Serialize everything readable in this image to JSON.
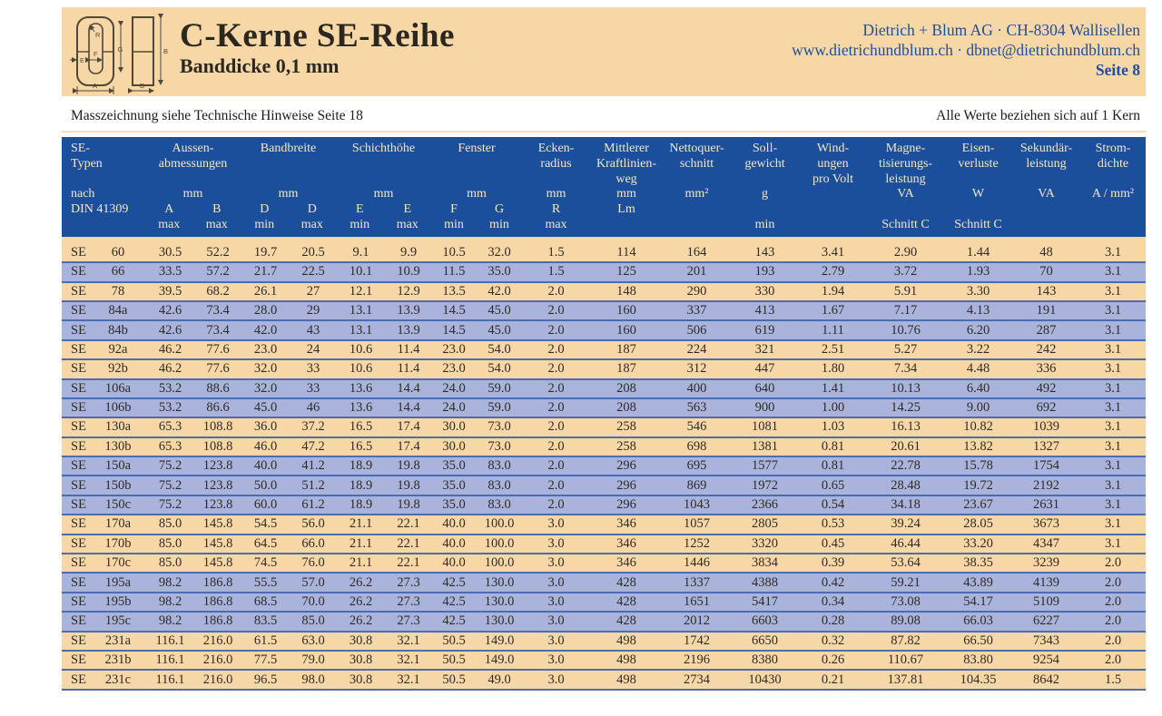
{
  "header": {
    "title": "C-Kerne SE-Reihe",
    "subtitle": "Banddicke 0,1 mm",
    "company_line1": "Dietrich + Blum AG · CH-8304 Wallisellen",
    "company_line2": "www.dietrichundblum.ch · dbnet@dietrichundblum.ch",
    "page_label": "Seite 8",
    "diagram_labels": {
      "r": "R",
      "g": "G",
      "f": "F",
      "e": "E",
      "a": "A",
      "b": "B",
      "d": "D"
    }
  },
  "notes": {
    "left": "Masszeichnung siehe Technische Hinweise Seite 18",
    "right": "Alle Werte beziehen sich auf 1 Kern"
  },
  "colors": {
    "peach": "#F8D7A6",
    "blue_row": "#A9B3DC",
    "header_blue": "#1C4F9B",
    "border_blue": "#4A6CB1",
    "header_text": "#F3E7C8",
    "blue_text": "#1C4F9B"
  },
  "table": {
    "groups": [
      {
        "id": "type",
        "span": 1,
        "align": "left",
        "lines": [
          "SE-",
          "Typen",
          "",
          "nach",
          "DIN 41309",
          ""
        ]
      },
      {
        "id": "aussenabmessungen",
        "span": 2,
        "lines": [
          "Aussen-",
          "abmessungen",
          "",
          "mm",
          [
            "A",
            "B"
          ],
          [
            "max",
            "max"
          ]
        ]
      },
      {
        "id": "bandbreite",
        "span": 2,
        "lines": [
          "Bandbreite",
          "",
          "",
          "mm",
          [
            "D",
            "D"
          ],
          [
            "min",
            "max"
          ]
        ]
      },
      {
        "id": "schichthoehe",
        "span": 2,
        "lines": [
          "Schichthöhe",
          "",
          "",
          "mm",
          [
            "E",
            "E"
          ],
          [
            "min",
            "max"
          ]
        ]
      },
      {
        "id": "fenster",
        "span": 2,
        "lines": [
          "Fenster",
          "",
          "",
          "mm",
          [
            "F",
            "G"
          ],
          [
            "min",
            "min"
          ]
        ]
      },
      {
        "id": "eckenradius",
        "span": 1,
        "lines": [
          "Ecken-",
          "radius",
          "",
          "mm",
          "R",
          "max"
        ]
      },
      {
        "id": "kraftlinienweg",
        "span": 1,
        "lines": [
          "Mittlerer",
          "Kraftlinien-",
          "weg",
          "mm",
          "Lm",
          ""
        ]
      },
      {
        "id": "nettoquerschnitt",
        "span": 1,
        "lines": [
          "Nettoquer-",
          "schnitt",
          "",
          "mm²",
          "",
          ""
        ]
      },
      {
        "id": "sollgewicht",
        "span": 1,
        "lines": [
          "Soll-",
          "gewicht",
          "",
          "g",
          "",
          "min"
        ]
      },
      {
        "id": "windungen",
        "span": 1,
        "lines": [
          "Wind-",
          "ungen",
          "pro Volt",
          "",
          "",
          ""
        ]
      },
      {
        "id": "magnetisierungsleistung",
        "span": 1,
        "lines": [
          "Magne-",
          "tisierungs-",
          "leistung",
          "VA",
          "",
          "Schnitt C"
        ]
      },
      {
        "id": "eisenverluste",
        "span": 1,
        "lines": [
          "Eisen-",
          "verluste",
          "",
          "W",
          "",
          "Schnitt C"
        ]
      },
      {
        "id": "sekundaerleistung",
        "span": 1,
        "lines": [
          "Sekundär-",
          "leistung",
          "",
          "VA",
          "",
          ""
        ]
      },
      {
        "id": "stromdichte",
        "span": 1,
        "lines": [
          "Strom-",
          "dichte",
          "",
          "A / mm²",
          "",
          ""
        ]
      }
    ],
    "rows": [
      {
        "prefix": "SE",
        "code": "60",
        "shade": "peach",
        "values": [
          "30.5",
          "52.2",
          "19.7",
          "20.5",
          "9.1",
          "9.9",
          "10.5",
          "32.0",
          "1.5",
          "114",
          "164",
          "143",
          "3.41",
          "2.90",
          "1.44",
          "48",
          "3.1"
        ]
      },
      {
        "prefix": "SE",
        "code": "66",
        "shade": "blue",
        "values": [
          "33.5",
          "57.2",
          "21.7",
          "22.5",
          "10.1",
          "10.9",
          "11.5",
          "35.0",
          "1.5",
          "125",
          "201",
          "193",
          "2.79",
          "3.72",
          "1.93",
          "70",
          "3.1"
        ]
      },
      {
        "prefix": "SE",
        "code": "78",
        "shade": "peach",
        "values": [
          "39.5",
          "68.2",
          "26.1",
          "27",
          "12.1",
          "12.9",
          "13.5",
          "42.0",
          "2.0",
          "148",
          "290",
          "330",
          "1.94",
          "5.91",
          "3.30",
          "143",
          "3.1"
        ]
      },
      {
        "prefix": "SE",
        "code": "84a",
        "shade": "blue",
        "values": [
          "42.6",
          "73.4",
          "28.0",
          "29",
          "13.1",
          "13.9",
          "14.5",
          "45.0",
          "2.0",
          "160",
          "337",
          "413",
          "1.67",
          "7.17",
          "4.13",
          "191",
          "3.1"
        ]
      },
      {
        "prefix": "SE",
        "code": "84b",
        "shade": "blue",
        "values": [
          "42.6",
          "73.4",
          "42.0",
          "43",
          "13.1",
          "13.9",
          "14.5",
          "45.0",
          "2.0",
          "160",
          "506",
          "619",
          "1.11",
          "10.76",
          "6.20",
          "287",
          "3.1"
        ]
      },
      {
        "prefix": "SE",
        "code": "92a",
        "shade": "peach",
        "values": [
          "46.2",
          "77.6",
          "23.0",
          "24",
          "10.6",
          "11.4",
          "23.0",
          "54.0",
          "2.0",
          "187",
          "224",
          "321",
          "2.51",
          "5.27",
          "3.22",
          "242",
          "3.1"
        ]
      },
      {
        "prefix": "SE",
        "code": "92b",
        "shade": "peach",
        "values": [
          "46.2",
          "77.6",
          "32.0",
          "33",
          "10.6",
          "11.4",
          "23.0",
          "54.0",
          "2.0",
          "187",
          "312",
          "447",
          "1.80",
          "7.34",
          "4.48",
          "336",
          "3.1"
        ]
      },
      {
        "prefix": "SE",
        "code": "106a",
        "shade": "blue",
        "values": [
          "53.2",
          "88.6",
          "32.0",
          "33",
          "13.6",
          "14.4",
          "24.0",
          "59.0",
          "2.0",
          "208",
          "400",
          "640",
          "1.41",
          "10.13",
          "6.40",
          "492",
          "3.1"
        ]
      },
      {
        "prefix": "SE",
        "code": "106b",
        "shade": "blue",
        "values": [
          "53.2",
          "86.6",
          "45.0",
          "46",
          "13.6",
          "14.4",
          "24.0",
          "59.0",
          "2.0",
          "208",
          "563",
          "900",
          "1.00",
          "14.25",
          "9.00",
          "692",
          "3.1"
        ]
      },
      {
        "prefix": "SE",
        "code": "130a",
        "shade": "peach",
        "values": [
          "65.3",
          "108.8",
          "36.0",
          "37.2",
          "16.5",
          "17.4",
          "30.0",
          "73.0",
          "2.0",
          "258",
          "546",
          "1081",
          "1.03",
          "16.13",
          "10.82",
          "1039",
          "3.1"
        ]
      },
      {
        "prefix": "SE",
        "code": "130b",
        "shade": "peach",
        "values": [
          "65.3",
          "108.8",
          "46.0",
          "47.2",
          "16.5",
          "17.4",
          "30.0",
          "73.0",
          "2.0",
          "258",
          "698",
          "1381",
          "0.81",
          "20.61",
          "13.82",
          "1327",
          "3.1"
        ]
      },
      {
        "prefix": "SE",
        "code": "150a",
        "shade": "blue",
        "values": [
          "75.2",
          "123.8",
          "40.0",
          "41.2",
          "18.9",
          "19.8",
          "35.0",
          "83.0",
          "2.0",
          "296",
          "695",
          "1577",
          "0.81",
          "22.78",
          "15.78",
          "1754",
          "3.1"
        ]
      },
      {
        "prefix": "SE",
        "code": "150b",
        "shade": "blue",
        "values": [
          "75.2",
          "123.8",
          "50.0",
          "51.2",
          "18.9",
          "19.8",
          "35.0",
          "83.0",
          "2.0",
          "296",
          "869",
          "1972",
          "0.65",
          "28.48",
          "19.72",
          "2192",
          "3.1"
        ]
      },
      {
        "prefix": "SE",
        "code": "150c",
        "shade": "blue",
        "values": [
          "75.2",
          "123.8",
          "60.0",
          "61.2",
          "18.9",
          "19.8",
          "35.0",
          "83.0",
          "2.0",
          "296",
          "1043",
          "2366",
          "0.54",
          "34.18",
          "23.67",
          "2631",
          "3.1"
        ]
      },
      {
        "prefix": "SE",
        "code": "170a",
        "shade": "peach",
        "values": [
          "85.0",
          "145.8",
          "54.5",
          "56.0",
          "21.1",
          "22.1",
          "40.0",
          "100.0",
          "3.0",
          "346",
          "1057",
          "2805",
          "0.53",
          "39.24",
          "28.05",
          "3673",
          "3.1"
        ]
      },
      {
        "prefix": "SE",
        "code": "170b",
        "shade": "peach",
        "values": [
          "85.0",
          "145.8",
          "64.5",
          "66.0",
          "21.1",
          "22.1",
          "40.0",
          "100.0",
          "3.0",
          "346",
          "1252",
          "3320",
          "0.45",
          "46.44",
          "33.20",
          "4347",
          "3.1"
        ]
      },
      {
        "prefix": "SE",
        "code": "170c",
        "shade": "peach",
        "values": [
          "85.0",
          "145.8",
          "74.5",
          "76.0",
          "21.1",
          "22.1",
          "40.0",
          "100.0",
          "3.0",
          "346",
          "1446",
          "3834",
          "0.39",
          "53.64",
          "38.35",
          "3239",
          "2.0"
        ]
      },
      {
        "prefix": "SE",
        "code": "195a",
        "shade": "blue",
        "values": [
          "98.2",
          "186.8",
          "55.5",
          "57.0",
          "26.2",
          "27.3",
          "42.5",
          "130.0",
          "3.0",
          "428",
          "1337",
          "4388",
          "0.42",
          "59.21",
          "43.89",
          "4139",
          "2.0"
        ]
      },
      {
        "prefix": "SE",
        "code": "195b",
        "shade": "blue",
        "values": [
          "98.2",
          "186.8",
          "68.5",
          "70.0",
          "26.2",
          "27.3",
          "42.5",
          "130.0",
          "3.0",
          "428",
          "1651",
          "5417",
          "0.34",
          "73.08",
          "54.17",
          "5109",
          "2.0"
        ]
      },
      {
        "prefix": "SE",
        "code": "195c",
        "shade": "blue",
        "values": [
          "98.2",
          "186.8",
          "83.5",
          "85.0",
          "26.2",
          "27.3",
          "42.5",
          "130.0",
          "3.0",
          "428",
          "2012",
          "6603",
          "0.28",
          "89.08",
          "66.03",
          "6227",
          "2.0"
        ]
      },
      {
        "prefix": "SE",
        "code": "231a",
        "shade": "peach",
        "values": [
          "116.1",
          "216.0",
          "61.5",
          "63.0",
          "30.8",
          "32.1",
          "50.5",
          "149.0",
          "3.0",
          "498",
          "1742",
          "6650",
          "0.32",
          "87.82",
          "66.50",
          "7343",
          "2.0"
        ]
      },
      {
        "prefix": "SE",
        "code": "231b",
        "shade": "peach",
        "values": [
          "116.1",
          "216.0",
          "77.5",
          "79.0",
          "30.8",
          "32.1",
          "50.5",
          "149.0",
          "3.0",
          "498",
          "2196",
          "8380",
          "0.26",
          "110.67",
          "83.80",
          "9254",
          "2.0"
        ]
      },
      {
        "prefix": "SE",
        "code": "231c",
        "shade": "peach",
        "values": [
          "116.1",
          "216.0",
          "96.5",
          "98.0",
          "30.8",
          "32.1",
          "50.5",
          "49.0",
          "3.0",
          "498",
          "2734",
          "10430",
          "0.21",
          "137.81",
          "104.35",
          "8642",
          "1.5"
        ]
      }
    ]
  }
}
